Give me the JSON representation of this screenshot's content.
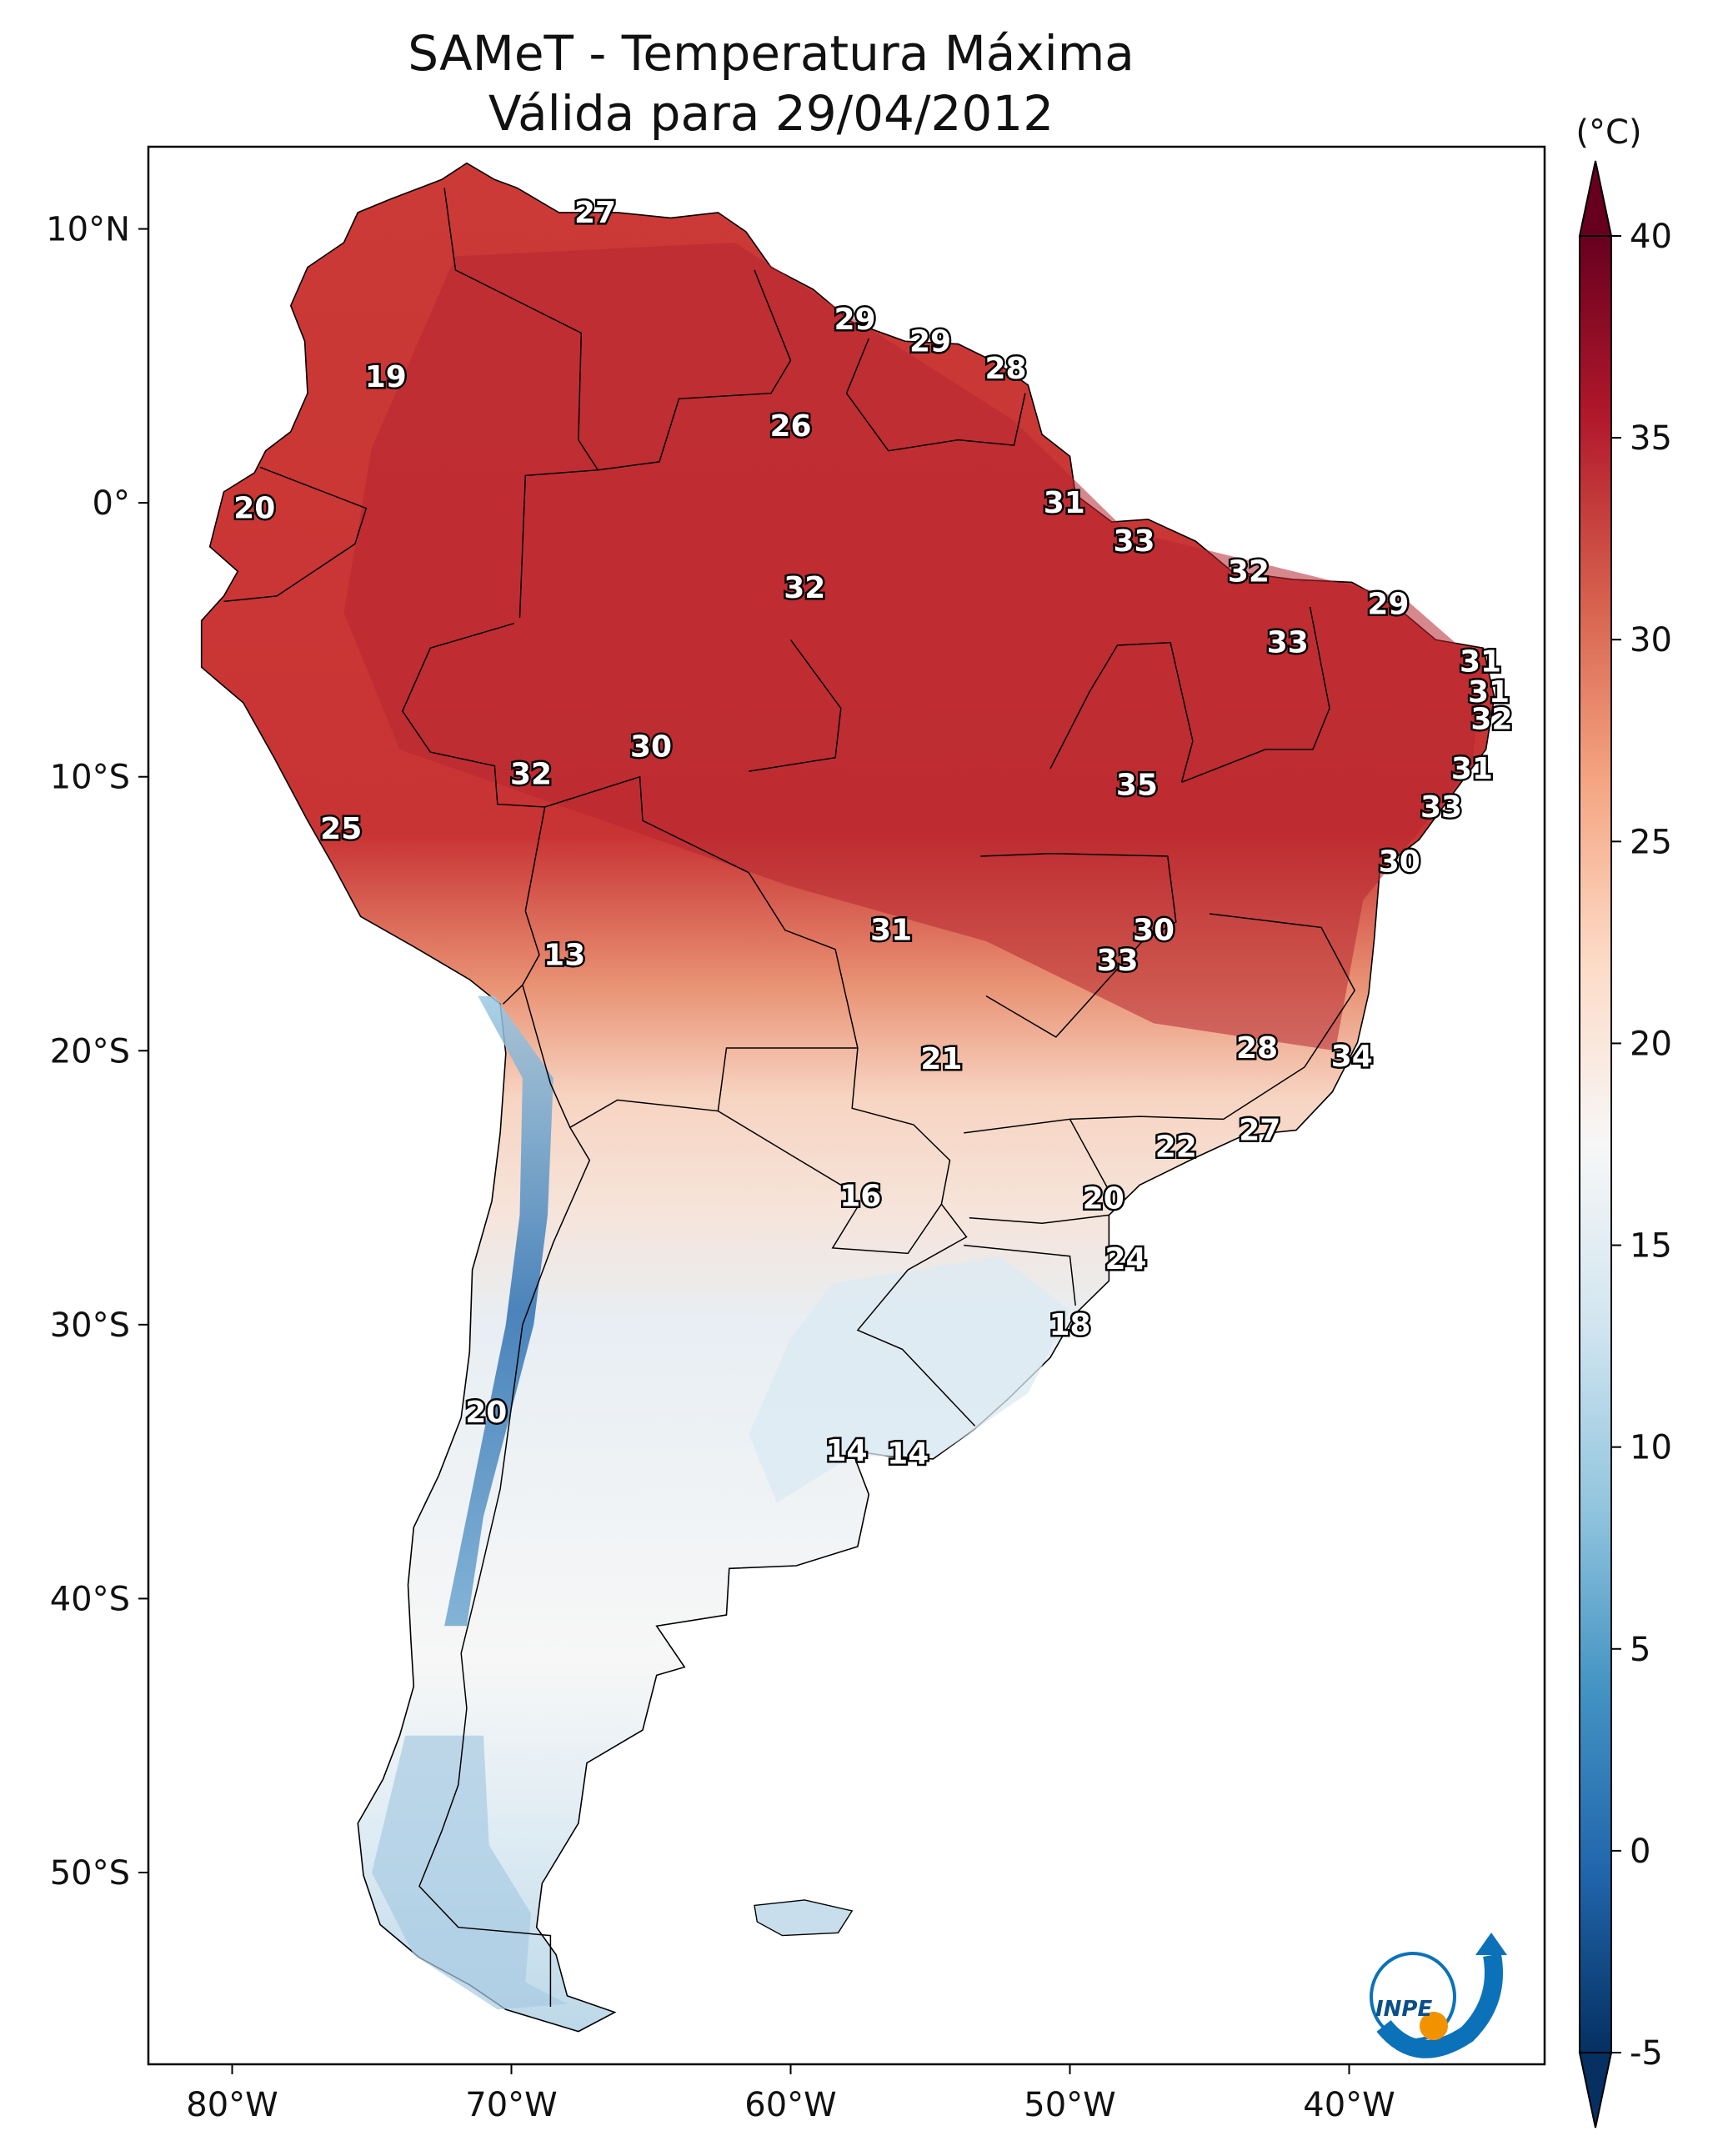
{
  "title": {
    "line1": "SAMeT - Temperatura Máxima",
    "line2": "Válida para 29/04/2012"
  },
  "map": {
    "lon_range": [
      -83,
      -33
    ],
    "lat_range": [
      -57,
      13
    ],
    "lon_ticks": [
      {
        "value": -80,
        "label": "80°W"
      },
      {
        "value": -70,
        "label": "70°W"
      },
      {
        "value": -60,
        "label": "60°W"
      },
      {
        "value": -50,
        "label": "50°W"
      },
      {
        "value": -40,
        "label": "40°W"
      }
    ],
    "lat_ticks": [
      {
        "value": 10,
        "label": "10°N"
      },
      {
        "value": 0,
        "label": "0°"
      },
      {
        "value": -10,
        "label": "10°S"
      },
      {
        "value": -20,
        "label": "20°S"
      },
      {
        "value": -30,
        "label": "30°S"
      },
      {
        "value": -40,
        "label": "40°S"
      },
      {
        "value": -50,
        "label": "50°S"
      }
    ],
    "labels": [
      {
        "lon": -67.0,
        "lat": 10.6,
        "text": "27"
      },
      {
        "lon": -74.5,
        "lat": 4.6,
        "text": "19"
      },
      {
        "lon": -79.2,
        "lat": -0.2,
        "text": "20"
      },
      {
        "lon": -57.7,
        "lat": 6.7,
        "text": "29"
      },
      {
        "lon": -55.0,
        "lat": 5.9,
        "text": "29"
      },
      {
        "lon": -52.3,
        "lat": 4.9,
        "text": "28"
      },
      {
        "lon": -60.0,
        "lat": 2.8,
        "text": "26"
      },
      {
        "lon": -50.2,
        "lat": 0.0,
        "text": "31"
      },
      {
        "lon": -47.7,
        "lat": -1.4,
        "text": "33"
      },
      {
        "lon": -43.6,
        "lat": -2.5,
        "text": "32"
      },
      {
        "lon": -59.5,
        "lat": -3.1,
        "text": "32"
      },
      {
        "lon": -38.6,
        "lat": -3.7,
        "text": "29"
      },
      {
        "lon": -42.2,
        "lat": -5.1,
        "text": "33"
      },
      {
        "lon": -35.3,
        "lat": -5.8,
        "text": "31"
      },
      {
        "lon": -35.0,
        "lat": -6.9,
        "text": "31"
      },
      {
        "lon": -34.9,
        "lat": -7.9,
        "text": "32"
      },
      {
        "lon": -35.6,
        "lat": -9.7,
        "text": "31"
      },
      {
        "lon": -36.7,
        "lat": -11.1,
        "text": "33"
      },
      {
        "lon": -38.2,
        "lat": -13.1,
        "text": "30"
      },
      {
        "lon": -47.6,
        "lat": -10.3,
        "text": "35"
      },
      {
        "lon": -65.0,
        "lat": -8.9,
        "text": "30"
      },
      {
        "lon": -69.3,
        "lat": -9.9,
        "text": "32"
      },
      {
        "lon": -76.1,
        "lat": -11.9,
        "text": "25"
      },
      {
        "lon": -68.1,
        "lat": -16.5,
        "text": "13"
      },
      {
        "lon": -56.4,
        "lat": -15.6,
        "text": "31"
      },
      {
        "lon": -47.0,
        "lat": -15.6,
        "text": "30"
      },
      {
        "lon": -48.3,
        "lat": -16.7,
        "text": "33"
      },
      {
        "lon": -54.6,
        "lat": -20.3,
        "text": "21"
      },
      {
        "lon": -43.3,
        "lat": -19.9,
        "text": "28"
      },
      {
        "lon": -39.9,
        "lat": -20.2,
        "text": "34"
      },
      {
        "lon": -43.2,
        "lat": -22.9,
        "text": "27"
      },
      {
        "lon": -46.2,
        "lat": -23.5,
        "text": "22"
      },
      {
        "lon": -57.5,
        "lat": -25.3,
        "text": "16"
      },
      {
        "lon": -48.8,
        "lat": -25.4,
        "text": "20"
      },
      {
        "lon": -48.0,
        "lat": -27.6,
        "text": "24"
      },
      {
        "lon": -50.0,
        "lat": -30.0,
        "text": "18"
      },
      {
        "lon": -70.9,
        "lat": -33.2,
        "text": "20"
      },
      {
        "lon": -58.0,
        "lat": -34.6,
        "text": "14"
      },
      {
        "lon": -55.8,
        "lat": -34.7,
        "text": "14"
      }
    ]
  },
  "colorbar": {
    "unit": "(°C)",
    "min": -5,
    "max": 40,
    "ticks": [
      {
        "value": 40,
        "label": "40"
      },
      {
        "value": 35,
        "label": "35"
      },
      {
        "value": 30,
        "label": "30"
      },
      {
        "value": 25,
        "label": "25"
      },
      {
        "value": 20,
        "label": "20"
      },
      {
        "value": 15,
        "label": "15"
      },
      {
        "value": 10,
        "label": "10"
      },
      {
        "value": 5,
        "label": "5"
      },
      {
        "value": 0,
        "label": "0"
      },
      {
        "value": -5,
        "label": "-5"
      }
    ],
    "colors": [
      "#053061",
      "#2166ac",
      "#4393c3",
      "#92c5de",
      "#d1e5f0",
      "#f7f7f7",
      "#fddbc7",
      "#f4a582",
      "#d6604d",
      "#b2182b",
      "#67001f"
    ]
  },
  "logo": {
    "text": "INPE",
    "colors": [
      "#0b72b9",
      "#f39200"
    ]
  }
}
